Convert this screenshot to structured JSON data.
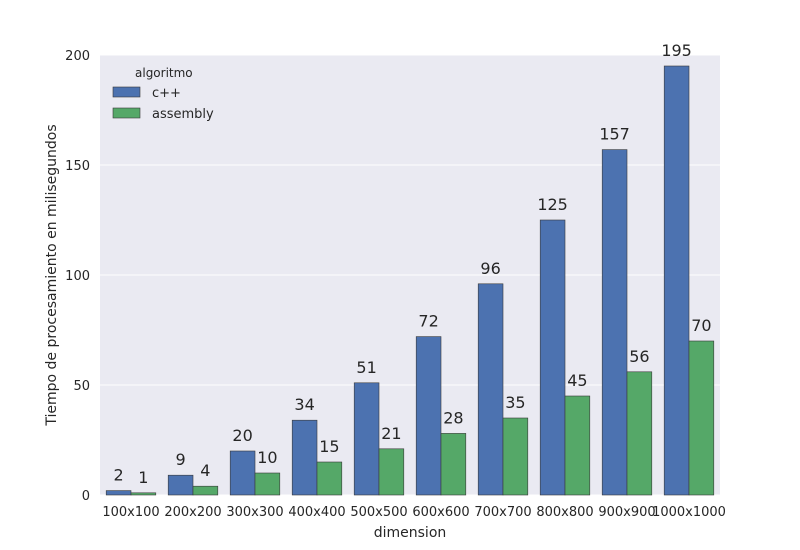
{
  "chart_data": {
    "type": "bar",
    "categories": [
      "100x100",
      "200x200",
      "300x300",
      "400x400",
      "500x500",
      "600x600",
      "700x700",
      "800x800",
      "900x900",
      "1000x1000"
    ],
    "series": [
      {
        "name": "c++",
        "color": "#4c72b0",
        "values": [
          2,
          9,
          20,
          34,
          51,
          72,
          96,
          125,
          157,
          195
        ],
        "labels": [
          "2",
          "9",
          "20",
          "34",
          "51",
          "72",
          "96",
          "125",
          "157",
          "195"
        ]
      },
      {
        "name": "assembly",
        "color": "#55a868",
        "values": [
          1,
          4,
          10,
          15,
          21,
          28,
          35,
          45,
          56,
          70
        ],
        "labels": [
          "1",
          "4",
          "10",
          "15",
          "21",
          "28",
          "35",
          "45",
          "56",
          "70"
        ]
      }
    ],
    "xlabel": "dimension",
    "ylabel": "Tiempo de procesamiento en milisegundos",
    "ylim": [
      0,
      200
    ],
    "yticks": [
      0,
      50,
      100,
      150,
      200
    ],
    "legend_title": "algoritmo",
    "legend_position": "top-left",
    "grid": true,
    "background_color": "#eaeaf2"
  }
}
